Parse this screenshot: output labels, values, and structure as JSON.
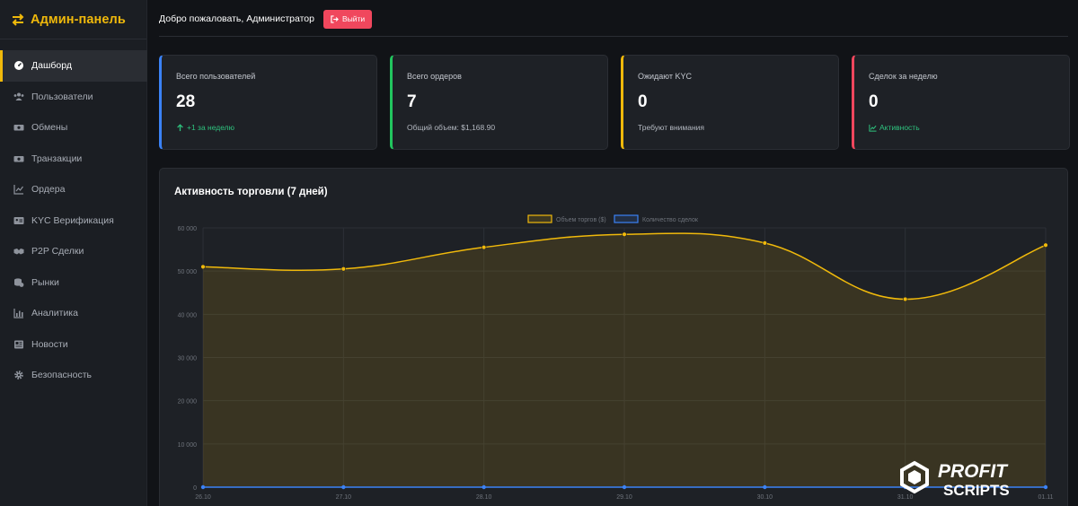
{
  "brand": {
    "title": "Админ-панель"
  },
  "sidebar": {
    "items": [
      {
        "label": "Дашборд",
        "icon": "dashboard-icon",
        "active": true
      },
      {
        "label": "Пользователи",
        "icon": "users-icon"
      },
      {
        "label": "Обмены",
        "icon": "money-icon"
      },
      {
        "label": "Транзакции",
        "icon": "money-icon"
      },
      {
        "label": "Ордера",
        "icon": "line-chart-icon"
      },
      {
        "label": "KYC Верификация",
        "icon": "id-card-icon"
      },
      {
        "label": "P2P Сделки",
        "icon": "handshake-icon"
      },
      {
        "label": "Рынки",
        "icon": "coins-icon"
      },
      {
        "label": "Аналитика",
        "icon": "bar-chart-icon"
      },
      {
        "label": "Новости",
        "icon": "newspaper-icon"
      },
      {
        "label": "Безопасность",
        "icon": "gear-icon"
      }
    ]
  },
  "header": {
    "welcome": "Добро пожаловать, Администратор",
    "logout_label": "Выйти"
  },
  "stats": [
    {
      "label": "Всего пользователей",
      "value": "28",
      "sub": "+1 за неделю",
      "accent": "#3b82f6"
    },
    {
      "label": "Всего ордеров",
      "value": "7",
      "sub": "Общий объем: $1,168.90",
      "accent": "#22c55e"
    },
    {
      "label": "Ожидают KYC",
      "value": "0",
      "sub": "Требуют внимания",
      "accent": "#f0b90b"
    },
    {
      "label": "Сделок за неделю",
      "value": "0",
      "sub": "Активность",
      "accent": "#f0475d"
    }
  ],
  "chart_panel": {
    "title": "Активность торговли (7 дней)"
  },
  "chart_data": {
    "type": "line",
    "categories": [
      "26.10",
      "27.10",
      "28.10",
      "29.10",
      "30.10",
      "31.10",
      "01.11"
    ],
    "series": [
      {
        "name": "Объем торгов ($)",
        "values": [
          51000,
          50500,
          55500,
          58500,
          56500,
          43500,
          56000
        ],
        "color": "#f0b90b"
      },
      {
        "name": "Количество сделок",
        "values": [
          0,
          0,
          0,
          0,
          0,
          0,
          0
        ],
        "color": "#3b82f6"
      }
    ],
    "yticks": [
      "0",
      "10 000",
      "20 000",
      "30 000",
      "40 000",
      "50 000",
      "60 000"
    ],
    "ylim": [
      0,
      60000
    ],
    "grid": true,
    "legend": "top-center"
  },
  "watermark": {
    "line1": "PROFIT",
    "line2": "SCRIPTS"
  }
}
